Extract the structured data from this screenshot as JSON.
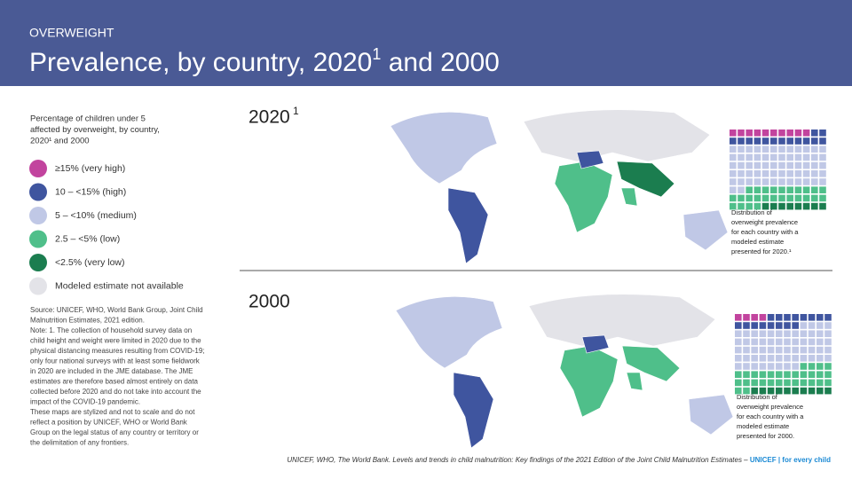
{
  "header": {
    "kicker": "OVERWEIGHT",
    "title": "Prevalence, by country, 2020",
    "title_sup": "1",
    "title_end": " and 2000"
  },
  "description": {
    "lines": [
      "Percentage of children under 5",
      "affected by overweight, by country,",
      "2020¹ and 2000"
    ]
  },
  "legend": [
    {
      "label": "≥15% (very high)",
      "color": "#c2449e"
    },
    {
      "label": "10 – <15% (high)",
      "color": "#3f559f"
    },
    {
      "label": "5 – <10% (medium)",
      "color": "#c0c8e6"
    },
    {
      "label": "2.5 – <5% (low)",
      "color": "#4fbf8a"
    },
    {
      "label": "<2.5% (very low)",
      "color": "#1b7d4f"
    },
    {
      "label": "Modeled estimate not available",
      "color": "#e3e3e8"
    }
  ],
  "source": {
    "lines": [
      "Source: UNICEF, WHO, World Bank Group, Joint Child",
      "Malnutrition Estimates, 2021 edition.",
      "Note: 1. The collection of household survey data on",
      "child height and weight were limited in 2020 due to the",
      "physical distancing measures resulting from COVID-19;",
      "only four national surveys with at least some fieldwork",
      "in 2020 are included in the JME database. The JME",
      "estimates are therefore based almost entirely on data",
      "collected before 2020 and do not take into account the",
      "impact of the COVID-19 pandemic.",
      "These maps are stylized and not to scale and do not",
      "reflect a position by UNICEF, WHO or World Bank",
      "Group on the legal status of any country or territory or",
      "the delimitation of any frontiers."
    ]
  },
  "maps": [
    {
      "year": "2020",
      "year_sup": "1",
      "caption": [
        "Distribution of",
        "overweight prevalence",
        "for each country with a",
        "modeled estimate",
        "presented for 2020.¹"
      ],
      "counts": [
        10,
        14,
        62,
        26,
        8
      ]
    },
    {
      "year": "2000",
      "year_sup": "",
      "caption": [
        "Distribution of",
        "overweight prevalence",
        "for each country with a",
        "modeled estimate",
        "presented for 2000."
      ],
      "counts": [
        4,
        16,
        60,
        30,
        10
      ]
    }
  ],
  "footer": {
    "text": "UNICEF, WHO, The World Bank. Levels and trends in child malnutrition: Key findings of the 2021 Edition of the Joint Child Malnutrition Estimates – ",
    "brand": "UNICEF | for every child"
  }
}
